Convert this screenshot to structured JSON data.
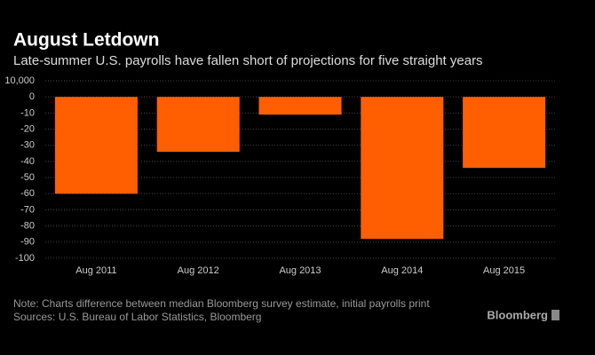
{
  "chart_data": {
    "type": "bar",
    "title": "August Letdown",
    "subtitle": "Late-summer U.S. payrolls have fallen short of projections for five straight years",
    "categories": [
      "Aug 2011",
      "Aug 2012",
      "Aug 2013",
      "Aug 2014",
      "Aug 2015"
    ],
    "values": [
      -60,
      -34,
      -11,
      -88,
      -44
    ],
    "color": "#ff5f00",
    "ylim": [
      10,
      -100
    ],
    "yticks": [
      {
        "value": 10,
        "label": "10,000"
      },
      0,
      -10,
      -20,
      -30,
      -40,
      -50,
      -60,
      -70,
      -80,
      -90,
      -100
    ],
    "grid": true,
    "note": "Note: Charts difference between median Bloomberg survey estimate, initial payrolls print",
    "sources": "Sources: U.S. Bureau of Labor Statistics, Bloomberg",
    "brand": "Bloomberg"
  }
}
